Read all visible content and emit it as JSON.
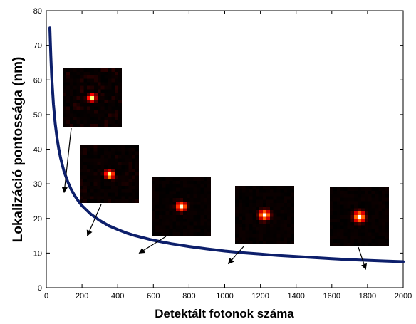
{
  "chart_data": {
    "type": "line",
    "title": "",
    "xlabel": "Detektált fotonok száma",
    "ylabel": "Lokalizáció pontossága (nm)",
    "xlim": [
      0,
      2000
    ],
    "ylim": [
      0,
      80
    ],
    "x_ticks": [
      "0",
      "200",
      "400",
      "600",
      "800",
      "1000",
      "1200",
      "1400",
      "1600",
      "1800",
      "2000"
    ],
    "y_ticks": [
      "0",
      "10",
      "20",
      "30",
      "40",
      "50",
      "60",
      "70",
      "80"
    ],
    "grid": false,
    "legend": "none",
    "line_color": "#0d1f6b",
    "series": [
      {
        "x": [
          20,
          25,
          30,
          40,
          50,
          60,
          70,
          80,
          90,
          100,
          120,
          140,
          160,
          180,
          200,
          250,
          300,
          350,
          400,
          450,
          500,
          600,
          700,
          800,
          900,
          1000,
          1100,
          1200,
          1300,
          1400,
          1500,
          1600,
          1700,
          1800,
          1900,
          2000
        ],
        "y": [
          75,
          67.1,
          61.2,
          53.0,
          47.4,
          43.3,
          40.1,
          37.5,
          35.4,
          33.5,
          30.6,
          28.3,
          26.5,
          25.0,
          23.7,
          21.2,
          19.4,
          17.9,
          16.8,
          15.8,
          15.0,
          13.7,
          12.7,
          11.9,
          11.2,
          10.6,
          10.1,
          9.7,
          9.3,
          9.0,
          8.7,
          8.4,
          8.1,
          7.9,
          7.7,
          7.5
        ]
      }
    ],
    "insets": [
      {
        "name": "psf-inset-1",
        "points_to": [
          100,
          27.5
        ],
        "spot_offset": [
          -0.1,
          -0.1
        ],
        "spot_sigma": 0.45,
        "noise": 0.45
      },
      {
        "name": "psf-inset-2",
        "points_to": [
          230,
          15
        ],
        "spot_offset": [
          0.05,
          0.2
        ],
        "spot_sigma": 0.5,
        "noise": 0.3
      },
      {
        "name": "psf-inset-3",
        "points_to": [
          520,
          10
        ],
        "spot_offset": [
          0,
          0
        ],
        "spot_sigma": 0.55,
        "noise": 0.2
      },
      {
        "name": "psf-inset-4",
        "points_to": [
          1020,
          6.9
        ],
        "spot_offset": [
          0,
          0
        ],
        "spot_sigma": 0.58,
        "noise": 0.12
      },
      {
        "name": "psf-inset-5",
        "points_to": [
          1790,
          5.3
        ],
        "spot_offset": [
          0,
          0
        ],
        "spot_sigma": 0.6,
        "noise": 0.06
      }
    ]
  }
}
